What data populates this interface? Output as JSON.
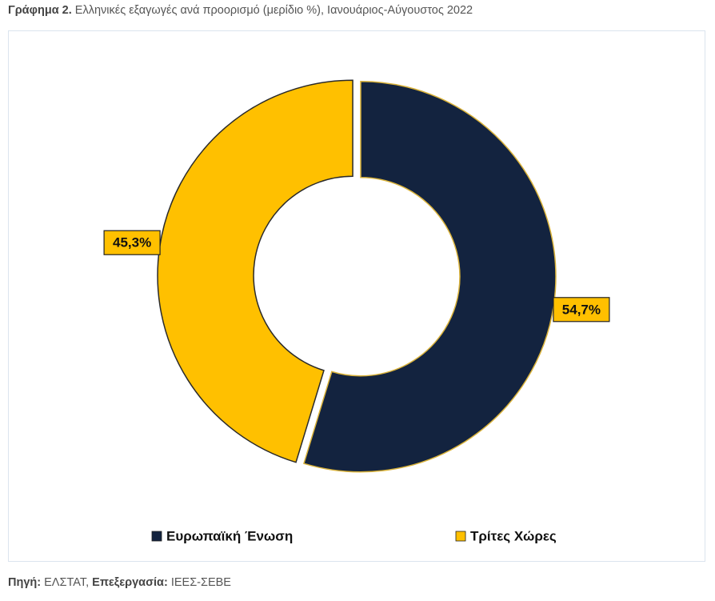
{
  "chart_data": {
    "type": "donut",
    "title_label": "Γράφημα 2.",
    "title": "Ελληνικές εξαγωγές ανά προορισμό (μερίδιο %), Ιανουάριος-Αύγουστος 2022",
    "categories": [
      "Ευρωπαϊκή Ένωση",
      "Τρίτες Χώρες"
    ],
    "values": [
      54.7,
      45.3
    ],
    "value_labels": [
      "54,7%",
      "45,3%"
    ],
    "colors": [
      "#13233f",
      "#ffc000"
    ],
    "source_label": "Πηγή:",
    "source": "ΕΛΣΤΑΤ,",
    "processing_label": "Επεξεργασία:",
    "processing": "ΙΕΕΣ-ΣΕΒΕ"
  }
}
